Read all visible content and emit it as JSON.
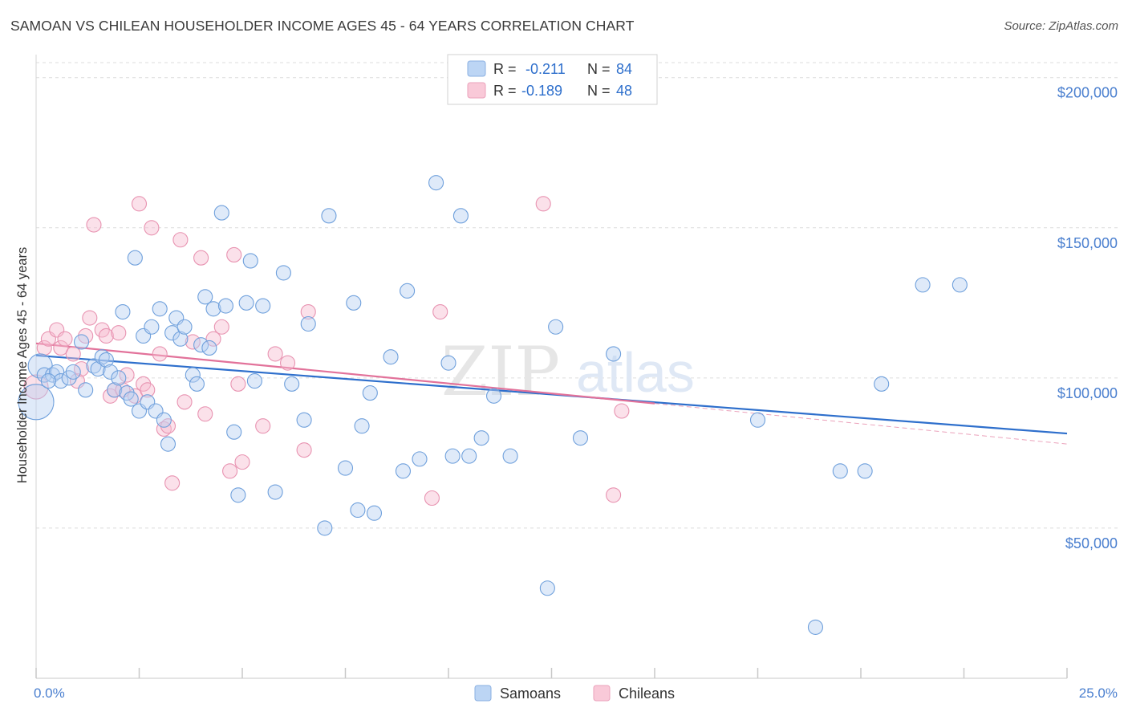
{
  "title": "SAMOAN VS CHILEAN HOUSEHOLDER INCOME AGES 45 - 64 YEARS CORRELATION CHART",
  "source": "Source: ZipAtlas.com",
  "watermark": {
    "zip": "ZIP",
    "atlas": "atlas"
  },
  "legend_box": {
    "rows": [
      {
        "r_label": "R =",
        "r_value": "-0.211",
        "n_label": "N =",
        "n_value": "84",
        "color": "#a8c8f0"
      },
      {
        "r_label": "R =",
        "r_value": "-0.189",
        "n_label": "N =",
        "n_value": "48",
        "color": "#f5b8cc"
      }
    ]
  },
  "chart_data": {
    "type": "scatter",
    "title": "SAMOAN VS CHILEAN HOUSEHOLDER INCOME AGES 45 - 64 YEARS CORRELATION CHART",
    "xlabel": "",
    "ylabel": "Householder Income Ages 45 - 64 years",
    "xlim": [
      0,
      25
    ],
    "ylim": [
      0,
      205000
    ],
    "x_tick_labels": [
      "0.0%",
      "25.0%"
    ],
    "y_ticks": [
      50000,
      100000,
      150000,
      200000
    ],
    "y_tick_labels": [
      "$50,000",
      "$100,000",
      "$150,000",
      "$200,000"
    ],
    "grid": "horizontal dashed",
    "legend_position": "bottom-center",
    "colors": {
      "samoans": "#6fa4e0",
      "chileans": "#f095b4",
      "samoans_line": "#2e6fcc",
      "chileans_line": "#e2729a",
      "tick_text": "#4a7fcf"
    },
    "series": [
      {
        "name": "Samoans",
        "r": -0.211,
        "n": 84,
        "trend": {
          "x": [
            0,
            25
          ],
          "y": [
            107500,
            81500
          ]
        },
        "points": [
          {
            "x": 0.0,
            "y": 92000,
            "s": 3
          },
          {
            "x": 0.1,
            "y": 104000,
            "s": 2
          },
          {
            "x": 0.2,
            "y": 101000,
            "s": 1
          },
          {
            "x": 0.4,
            "y": 101000,
            "s": 1
          },
          {
            "x": 0.5,
            "y": 102000,
            "s": 1
          },
          {
            "x": 0.6,
            "y": 99000,
            "s": 1
          },
          {
            "x": 0.8,
            "y": 100000,
            "s": 1
          },
          {
            "x": 0.9,
            "y": 102000,
            "s": 1
          },
          {
            "x": 1.1,
            "y": 112000,
            "s": 1
          },
          {
            "x": 1.2,
            "y": 96000,
            "s": 1
          },
          {
            "x": 1.4,
            "y": 104000,
            "s": 1
          },
          {
            "x": 1.5,
            "y": 103000,
            "s": 1
          },
          {
            "x": 1.6,
            "y": 107000,
            "s": 1
          },
          {
            "x": 1.7,
            "y": 106000,
            "s": 1
          },
          {
            "x": 1.8,
            "y": 102000,
            "s": 1
          },
          {
            "x": 1.9,
            "y": 96000,
            "s": 1
          },
          {
            "x": 2.0,
            "y": 100000,
            "s": 1
          },
          {
            "x": 2.1,
            "y": 122000,
            "s": 1
          },
          {
            "x": 2.2,
            "y": 95000,
            "s": 1
          },
          {
            "x": 2.3,
            "y": 93000,
            "s": 1
          },
          {
            "x": 2.4,
            "y": 140000,
            "s": 1
          },
          {
            "x": 2.5,
            "y": 89000,
            "s": 1
          },
          {
            "x": 2.6,
            "y": 114000,
            "s": 1
          },
          {
            "x": 2.7,
            "y": 92000,
            "s": 1
          },
          {
            "x": 2.8,
            "y": 117000,
            "s": 1
          },
          {
            "x": 2.9,
            "y": 89000,
            "s": 1
          },
          {
            "x": 3.0,
            "y": 123000,
            "s": 1
          },
          {
            "x": 3.1,
            "y": 86000,
            "s": 1
          },
          {
            "x": 3.2,
            "y": 78000,
            "s": 1
          },
          {
            "x": 3.3,
            "y": 115000,
            "s": 1
          },
          {
            "x": 3.4,
            "y": 120000,
            "s": 1
          },
          {
            "x": 3.5,
            "y": 113000,
            "s": 1
          },
          {
            "x": 3.6,
            "y": 117000,
            "s": 1
          },
          {
            "x": 3.8,
            "y": 101000,
            "s": 1
          },
          {
            "x": 3.9,
            "y": 98000,
            "s": 1
          },
          {
            "x": 4.0,
            "y": 111000,
            "s": 1
          },
          {
            "x": 4.1,
            "y": 127000,
            "s": 1
          },
          {
            "x": 4.2,
            "y": 110000,
            "s": 1
          },
          {
            "x": 4.3,
            "y": 123000,
            "s": 1
          },
          {
            "x": 4.5,
            "y": 155000,
            "s": 1
          },
          {
            "x": 4.6,
            "y": 124000,
            "s": 1
          },
          {
            "x": 4.8,
            "y": 82000,
            "s": 1
          },
          {
            "x": 4.9,
            "y": 61000,
            "s": 1
          },
          {
            "x": 5.1,
            "y": 125000,
            "s": 1
          },
          {
            "x": 5.2,
            "y": 139000,
            "s": 1
          },
          {
            "x": 5.3,
            "y": 99000,
            "s": 1
          },
          {
            "x": 5.5,
            "y": 124000,
            "s": 1
          },
          {
            "x": 5.8,
            "y": 62000,
            "s": 1
          },
          {
            "x": 6.0,
            "y": 135000,
            "s": 1
          },
          {
            "x": 6.2,
            "y": 98000,
            "s": 1
          },
          {
            "x": 6.5,
            "y": 86000,
            "s": 1
          },
          {
            "x": 6.6,
            "y": 118000,
            "s": 1
          },
          {
            "x": 7.0,
            "y": 50000,
            "s": 1
          },
          {
            "x": 7.1,
            "y": 154000,
            "s": 1
          },
          {
            "x": 7.5,
            "y": 70000,
            "s": 1
          },
          {
            "x": 7.7,
            "y": 125000,
            "s": 1
          },
          {
            "x": 7.8,
            "y": 56000,
            "s": 1
          },
          {
            "x": 7.9,
            "y": 84000,
            "s": 1
          },
          {
            "x": 8.1,
            "y": 95000,
            "s": 1
          },
          {
            "x": 8.2,
            "y": 55000,
            "s": 1
          },
          {
            "x": 8.6,
            "y": 107000,
            "s": 1
          },
          {
            "x": 8.9,
            "y": 69000,
            "s": 1
          },
          {
            "x": 9.0,
            "y": 129000,
            "s": 1
          },
          {
            "x": 9.3,
            "y": 73000,
            "s": 1
          },
          {
            "x": 9.7,
            "y": 165000,
            "s": 1
          },
          {
            "x": 10.0,
            "y": 105000,
            "s": 1
          },
          {
            "x": 10.1,
            "y": 74000,
            "s": 1
          },
          {
            "x": 10.3,
            "y": 154000,
            "s": 1
          },
          {
            "x": 10.5,
            "y": 74000,
            "s": 1
          },
          {
            "x": 10.8,
            "y": 80000,
            "s": 1
          },
          {
            "x": 11.1,
            "y": 94000,
            "s": 1
          },
          {
            "x": 11.5,
            "y": 74000,
            "s": 1
          },
          {
            "x": 12.4,
            "y": 30000,
            "s": 1
          },
          {
            "x": 12.6,
            "y": 117000,
            "s": 1
          },
          {
            "x": 13.2,
            "y": 80000,
            "s": 1
          },
          {
            "x": 14.0,
            "y": 108000,
            "s": 1
          },
          {
            "x": 17.5,
            "y": 86000,
            "s": 1
          },
          {
            "x": 18.9,
            "y": 17000,
            "s": 1
          },
          {
            "x": 19.5,
            "y": 69000,
            "s": 1
          },
          {
            "x": 20.1,
            "y": 69000,
            "s": 1
          },
          {
            "x": 20.5,
            "y": 98000,
            "s": 1
          },
          {
            "x": 21.5,
            "y": 131000,
            "s": 1
          },
          {
            "x": 22.4,
            "y": 131000,
            "s": 1
          },
          {
            "x": 0.3,
            "y": 99000,
            "s": 1
          }
        ]
      },
      {
        "name": "Chileans",
        "r": -0.189,
        "n": 48,
        "trend": {
          "x": [
            0,
            15
          ],
          "y": [
            111500,
            91500
          ]
        },
        "trend_ext": {
          "x": [
            15,
            25
          ],
          "y": [
            91500,
            78000
          ]
        },
        "points": [
          {
            "x": 0.0,
            "y": 97000,
            "s": 2
          },
          {
            "x": 0.2,
            "y": 110000,
            "s": 1
          },
          {
            "x": 0.3,
            "y": 113000,
            "s": 1
          },
          {
            "x": 0.5,
            "y": 116000,
            "s": 1
          },
          {
            "x": 0.6,
            "y": 110000,
            "s": 1
          },
          {
            "x": 0.7,
            "y": 113000,
            "s": 1
          },
          {
            "x": 0.9,
            "y": 108000,
            "s": 1
          },
          {
            "x": 1.0,
            "y": 99000,
            "s": 1
          },
          {
            "x": 1.1,
            "y": 103000,
            "s": 1
          },
          {
            "x": 1.2,
            "y": 114000,
            "s": 1
          },
          {
            "x": 1.3,
            "y": 120000,
            "s": 1
          },
          {
            "x": 1.4,
            "y": 151000,
            "s": 1
          },
          {
            "x": 1.6,
            "y": 116000,
            "s": 1
          },
          {
            "x": 1.7,
            "y": 114000,
            "s": 1
          },
          {
            "x": 1.8,
            "y": 94000,
            "s": 1
          },
          {
            "x": 1.9,
            "y": 96000,
            "s": 1
          },
          {
            "x": 2.0,
            "y": 115000,
            "s": 1
          },
          {
            "x": 2.1,
            "y": 96000,
            "s": 1
          },
          {
            "x": 2.2,
            "y": 101000,
            "s": 1
          },
          {
            "x": 2.4,
            "y": 94000,
            "s": 1
          },
          {
            "x": 2.5,
            "y": 158000,
            "s": 1
          },
          {
            "x": 2.6,
            "y": 98000,
            "s": 1
          },
          {
            "x": 2.7,
            "y": 96000,
            "s": 1
          },
          {
            "x": 2.8,
            "y": 150000,
            "s": 1
          },
          {
            "x": 3.0,
            "y": 108000,
            "s": 1
          },
          {
            "x": 3.1,
            "y": 83000,
            "s": 1
          },
          {
            "x": 3.2,
            "y": 84000,
            "s": 1
          },
          {
            "x": 3.3,
            "y": 65000,
            "s": 1
          },
          {
            "x": 3.5,
            "y": 146000,
            "s": 1
          },
          {
            "x": 3.6,
            "y": 92000,
            "s": 1
          },
          {
            "x": 3.8,
            "y": 112000,
            "s": 1
          },
          {
            "x": 4.0,
            "y": 140000,
            "s": 1
          },
          {
            "x": 4.1,
            "y": 88000,
            "s": 1
          },
          {
            "x": 4.3,
            "y": 113000,
            "s": 1
          },
          {
            "x": 4.5,
            "y": 117000,
            "s": 1
          },
          {
            "x": 4.7,
            "y": 69000,
            "s": 1
          },
          {
            "x": 4.8,
            "y": 141000,
            "s": 1
          },
          {
            "x": 4.9,
            "y": 98000,
            "s": 1
          },
          {
            "x": 5.0,
            "y": 72000,
            "s": 1
          },
          {
            "x": 5.5,
            "y": 84000,
            "s": 1
          },
          {
            "x": 5.8,
            "y": 108000,
            "s": 1
          },
          {
            "x": 6.1,
            "y": 105000,
            "s": 1
          },
          {
            "x": 6.6,
            "y": 122000,
            "s": 1
          },
          {
            "x": 6.5,
            "y": 76000,
            "s": 1
          },
          {
            "x": 9.6,
            "y": 60000,
            "s": 1
          },
          {
            "x": 9.8,
            "y": 122000,
            "s": 1
          },
          {
            "x": 12.3,
            "y": 158000,
            "s": 1
          },
          {
            "x": 14.0,
            "y": 61000,
            "s": 1
          },
          {
            "x": 14.2,
            "y": 89000,
            "s": 1
          }
        ]
      }
    ]
  }
}
